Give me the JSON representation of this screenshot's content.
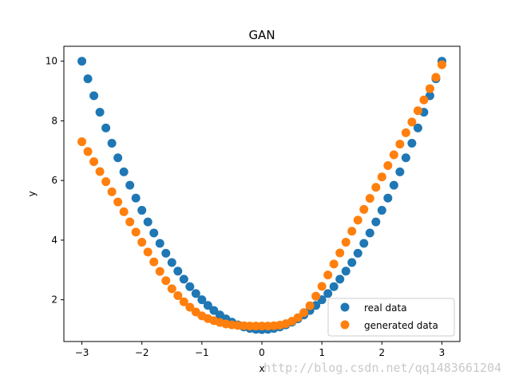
{
  "chart_data": {
    "type": "scatter",
    "title": "GAN",
    "xlabel": "x",
    "ylabel": "y",
    "xlim": [
      -3.3,
      3.3
    ],
    "ylim": [
      0.6,
      10.5
    ],
    "xticks": [
      -3,
      -2,
      -1,
      0,
      1,
      2,
      3
    ],
    "yticks": [
      2,
      4,
      6,
      8,
      10
    ],
    "xtick_labels": [
      "−3",
      "−2",
      "−1",
      "0",
      "1",
      "2",
      "3"
    ],
    "ytick_labels": [
      "2",
      "4",
      "6",
      "8",
      "10"
    ],
    "grid": false,
    "legend_position": "lower-right",
    "series": [
      {
        "name": "real data",
        "color": "#1f77b4",
        "x": [
          -3.0,
          -2.9,
          -2.8,
          -2.7,
          -2.6,
          -2.5,
          -2.4,
          -2.3,
          -2.2,
          -2.1,
          -2.0,
          -1.9,
          -1.8,
          -1.7,
          -1.6,
          -1.5,
          -1.4,
          -1.3,
          -1.2,
          -1.1,
          -1.0,
          -0.9,
          -0.8,
          -0.7,
          -0.6,
          -0.5,
          -0.4,
          -0.3,
          -0.2,
          -0.1,
          0.0,
          0.1,
          0.2,
          0.3,
          0.4,
          0.5,
          0.6,
          0.7,
          0.8,
          0.9,
          1.0,
          1.1,
          1.2,
          1.3,
          1.4,
          1.5,
          1.6,
          1.7,
          1.8,
          1.9,
          2.0,
          2.1,
          2.2,
          2.3,
          2.4,
          2.5,
          2.6,
          2.7,
          2.8,
          2.9,
          3.0
        ],
        "y": [
          10.0,
          9.41,
          8.84,
          8.29,
          7.76,
          7.25,
          6.76,
          6.29,
          5.84,
          5.41,
          5.0,
          4.61,
          4.24,
          3.89,
          3.56,
          3.25,
          2.96,
          2.69,
          2.44,
          2.21,
          2.0,
          1.81,
          1.64,
          1.49,
          1.36,
          1.25,
          1.16,
          1.09,
          1.04,
          1.01,
          1.0,
          1.01,
          1.04,
          1.09,
          1.16,
          1.25,
          1.36,
          1.49,
          1.64,
          1.81,
          2.0,
          2.21,
          2.44,
          2.69,
          2.96,
          3.25,
          3.56,
          3.89,
          4.24,
          4.61,
          5.0,
          5.41,
          5.84,
          6.29,
          6.76,
          7.25,
          7.76,
          8.29,
          8.84,
          9.41,
          10.0
        ]
      },
      {
        "name": "generated data",
        "color": "#ff7f0e",
        "x": [
          -3.0,
          -2.9,
          -2.8,
          -2.7,
          -2.6,
          -2.5,
          -2.4,
          -2.3,
          -2.2,
          -2.1,
          -2.0,
          -1.9,
          -1.8,
          -1.7,
          -1.6,
          -1.5,
          -1.4,
          -1.3,
          -1.2,
          -1.1,
          -1.0,
          -0.9,
          -0.8,
          -0.7,
          -0.6,
          -0.5,
          -0.4,
          -0.3,
          -0.2,
          -0.1,
          0.0,
          0.1,
          0.2,
          0.3,
          0.4,
          0.5,
          0.6,
          0.7,
          0.8,
          0.9,
          1.0,
          1.1,
          1.2,
          1.3,
          1.4,
          1.5,
          1.6,
          1.7,
          1.8,
          1.9,
          2.0,
          2.1,
          2.2,
          2.3,
          2.4,
          2.5,
          2.6,
          2.7,
          2.8,
          2.9,
          3.0
        ],
        "y": [
          7.3,
          6.97,
          6.63,
          6.3,
          5.96,
          5.62,
          5.28,
          4.95,
          4.61,
          4.27,
          3.93,
          3.6,
          3.27,
          2.95,
          2.64,
          2.37,
          2.14,
          1.93,
          1.75,
          1.59,
          1.46,
          1.37,
          1.3,
          1.24,
          1.19,
          1.16,
          1.14,
          1.13,
          1.12,
          1.12,
          1.12,
          1.12,
          1.13,
          1.15,
          1.2,
          1.28,
          1.4,
          1.57,
          1.8,
          2.12,
          2.45,
          2.83,
          3.2,
          3.57,
          3.93,
          4.3,
          4.67,
          5.03,
          5.4,
          5.77,
          6.12,
          6.5,
          6.86,
          7.22,
          7.6,
          7.96,
          8.34,
          8.7,
          9.08,
          9.46,
          9.88
        ]
      }
    ]
  },
  "watermark": "http://blog.csdn.net/qq1483661204"
}
